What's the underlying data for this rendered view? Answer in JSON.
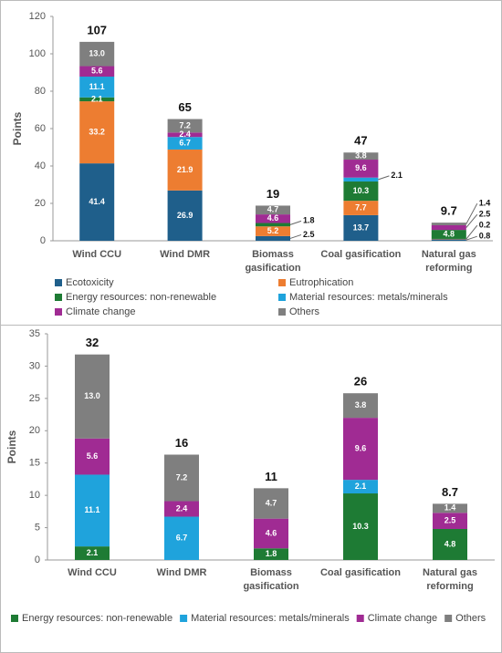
{
  "chart_data": [
    {
      "type": "bar",
      "stacked": true,
      "y_label": "Points",
      "categories": [
        "Wind CCU",
        "Wind DMR",
        "Biomass gasification",
        "Coal gasification",
        "Natural gas reforming"
      ],
      "ylim": [
        0,
        120
      ],
      "yticks": [
        0,
        20,
        40,
        60,
        80,
        100,
        120
      ],
      "grid": false,
      "totals": [
        107,
        65,
        19,
        47,
        9.7
      ],
      "series": [
        {
          "name": "Ecotoxicity",
          "color": "#1f5f8b",
          "values": [
            41.4,
            26.9,
            2.5,
            13.7,
            0.8
          ],
          "value_labels": [
            "41.4",
            "26.9",
            "2.5",
            "13.7",
            "0.8"
          ]
        },
        {
          "name": "Eutrophication",
          "color": "#ed7d31",
          "values": [
            33.2,
            21.9,
            5.2,
            7.7,
            0.2
          ],
          "value_labels": [
            "33.2",
            "21.9",
            "5.2",
            "7.7",
            "0.2"
          ]
        },
        {
          "name": "Energy resources: non-renewable",
          "color": "#1e7b34",
          "values": [
            2.1,
            null,
            1.8,
            10.3,
            4.8
          ],
          "value_labels": [
            "2.1",
            null,
            "1.8",
            "10.3",
            "4.8"
          ]
        },
        {
          "name": "Material resources: metals/minerals",
          "color": "#1fa3dc",
          "values": [
            11.1,
            6.7,
            null,
            2.1,
            null
          ],
          "value_labels": [
            "11.1",
            "6.7",
            null,
            "2.1",
            null
          ]
        },
        {
          "name": "Climate change",
          "color": "#a02b93",
          "values": [
            5.6,
            2.4,
            4.6,
            9.6,
            2.5
          ],
          "value_labels": [
            "5.6",
            "2.4",
            "4.6",
            "9.6",
            "2.5"
          ]
        },
        {
          "name": "Others",
          "color": "#7f7f7f",
          "values": [
            13.0,
            7.2,
            4.7,
            3.8,
            1.4
          ],
          "value_labels": [
            "13.0",
            "7.2",
            "4.7",
            "3.8",
            "1.4"
          ]
        }
      ]
    },
    {
      "type": "bar",
      "stacked": true,
      "y_label": "Points",
      "categories": [
        "Wind CCU",
        "Wind DMR",
        "Biomass gasification",
        "Coal gasification",
        "Natural gas reforming"
      ],
      "ylim": [
        0,
        35
      ],
      "yticks": [
        0,
        5,
        10,
        15,
        20,
        25,
        30,
        35
      ],
      "grid": false,
      "totals": [
        32,
        16,
        11,
        26,
        8.7
      ],
      "series": [
        {
          "name": "Energy resources: non-renewable",
          "color": "#1e7b34",
          "values": [
            2.1,
            null,
            1.8,
            10.3,
            4.8
          ],
          "value_labels": [
            "2.1",
            null,
            "1.8",
            "10.3",
            "4.8"
          ]
        },
        {
          "name": "Material resources: metals/minerals",
          "color": "#1fa3dc",
          "values": [
            11.1,
            6.7,
            null,
            2.1,
            null
          ],
          "value_labels": [
            "11.1",
            "6.7",
            null,
            "2.1",
            null
          ]
        },
        {
          "name": "Climate change",
          "color": "#a02b93",
          "values": [
            5.6,
            2.4,
            4.6,
            9.6,
            2.5
          ],
          "value_labels": [
            "5.6",
            "2.4",
            "4.6",
            "9.6",
            "2.5"
          ]
        },
        {
          "name": "Others",
          "color": "#7f7f7f",
          "values": [
            13.0,
            7.2,
            4.7,
            3.8,
            1.4
          ],
          "value_labels": [
            "13.0",
            "7.2",
            "4.7",
            "3.8",
            "1.4"
          ]
        }
      ]
    }
  ]
}
